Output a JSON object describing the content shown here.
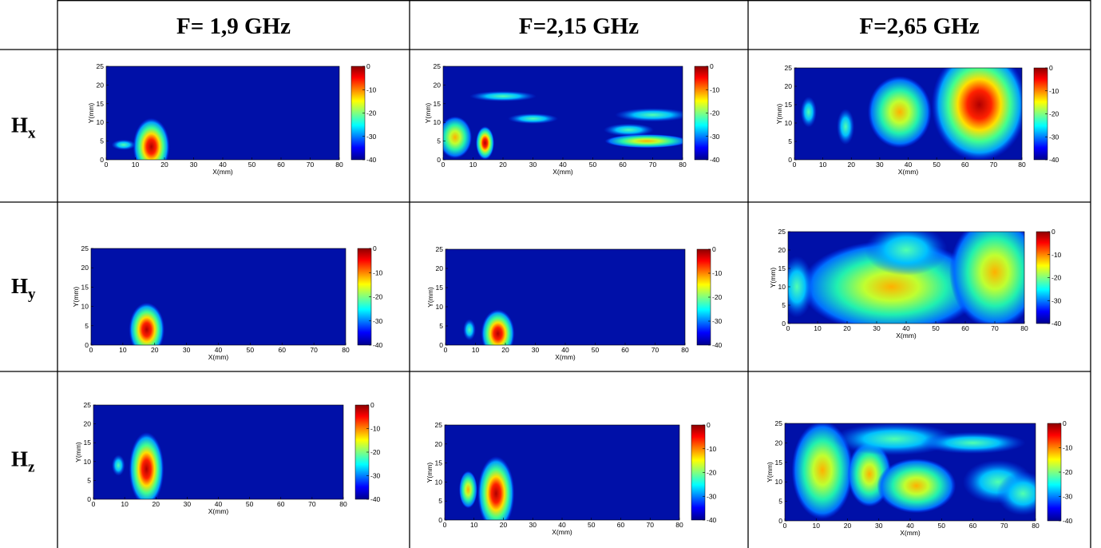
{
  "table": {
    "header": [
      "F= 1,9 GHz",
      "F=2,15 GHz",
      "F=2,65 GHz"
    ],
    "rows": [
      {
        "label": "H",
        "sub": "x"
      },
      {
        "label": "H",
        "sub": "y"
      },
      {
        "label": "H",
        "sub": "z"
      }
    ]
  },
  "axes": {
    "xticks": [
      0,
      10,
      20,
      30,
      40,
      50,
      60,
      70,
      80
    ],
    "yticks": [
      0,
      5,
      10,
      15,
      20,
      25
    ],
    "colorbar_ticks": [
      0,
      -10,
      -20,
      -30,
      -40
    ],
    "xlabel": "X(mm)",
    "ylabel": "Y(mm)"
  }
}
